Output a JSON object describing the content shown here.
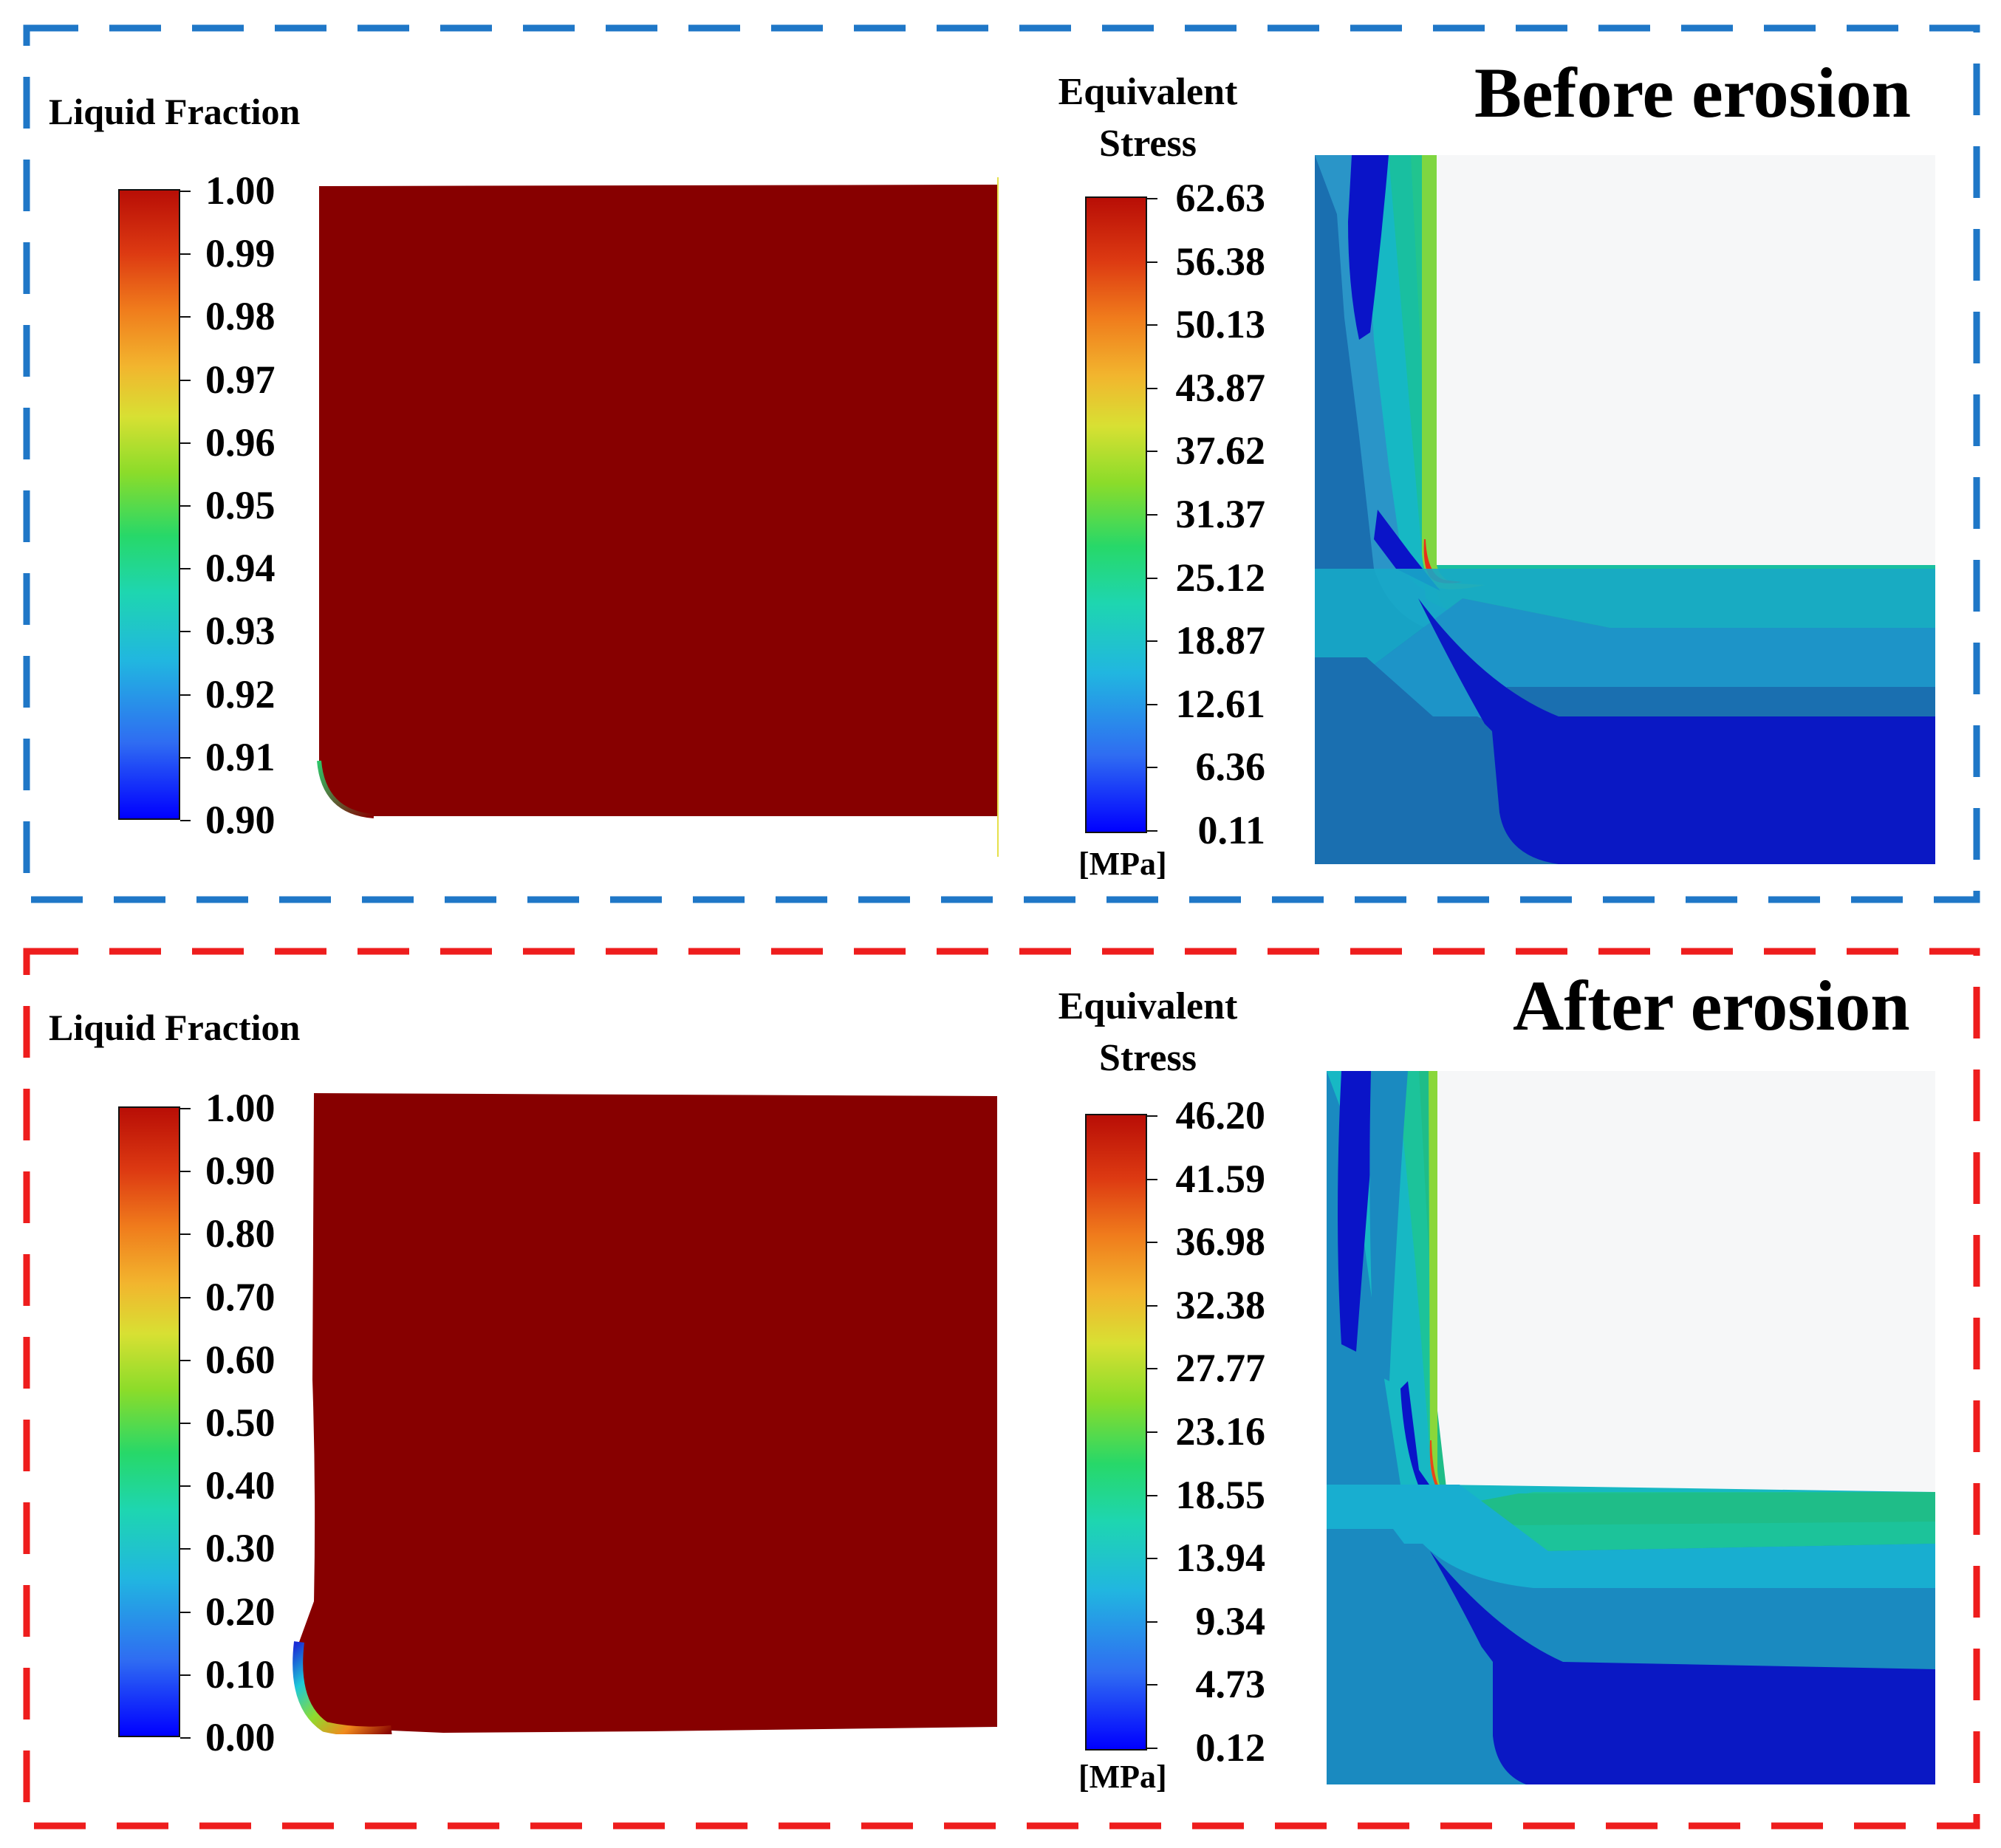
{
  "colors": {
    "before_frame": "#1f77c7",
    "after_frame": "#ee1d1d",
    "liquid": "#870000"
  },
  "before": {
    "title": "Before erosion",
    "liquid_fraction": {
      "title": "Liquid Fraction",
      "ticks": [
        "1.00",
        "0.99",
        "0.98",
        "0.97",
        "0.96",
        "0.95",
        "0.94",
        "0.93",
        "0.92",
        "0.91",
        "0.90"
      ]
    },
    "stress": {
      "title_line1": "Equivalent",
      "title_line2": "Stress",
      "unit": "[MPa]",
      "ticks": [
        "62.63",
        "56.38",
        "50.13",
        "43.87",
        "37.62",
        "31.37",
        "25.12",
        "18.87",
        "12.61",
        "6.36",
        "0.11"
      ]
    }
  },
  "after": {
    "title": "After erosion",
    "liquid_fraction": {
      "title": "Liquid Fraction",
      "ticks": [
        "1.00",
        "0.90",
        "0.80",
        "0.70",
        "0.60",
        "0.50",
        "0.40",
        "0.30",
        "0.20",
        "0.10",
        "0.00"
      ]
    },
    "stress": {
      "title_line1": "Equivalent",
      "title_line2": "Stress",
      "unit": "[MPa]",
      "ticks": [
        "46.20",
        "41.59",
        "36.98",
        "32.38",
        "27.77",
        "23.16",
        "18.55",
        "13.94",
        "9.34",
        "4.73",
        "0.12"
      ]
    }
  }
}
